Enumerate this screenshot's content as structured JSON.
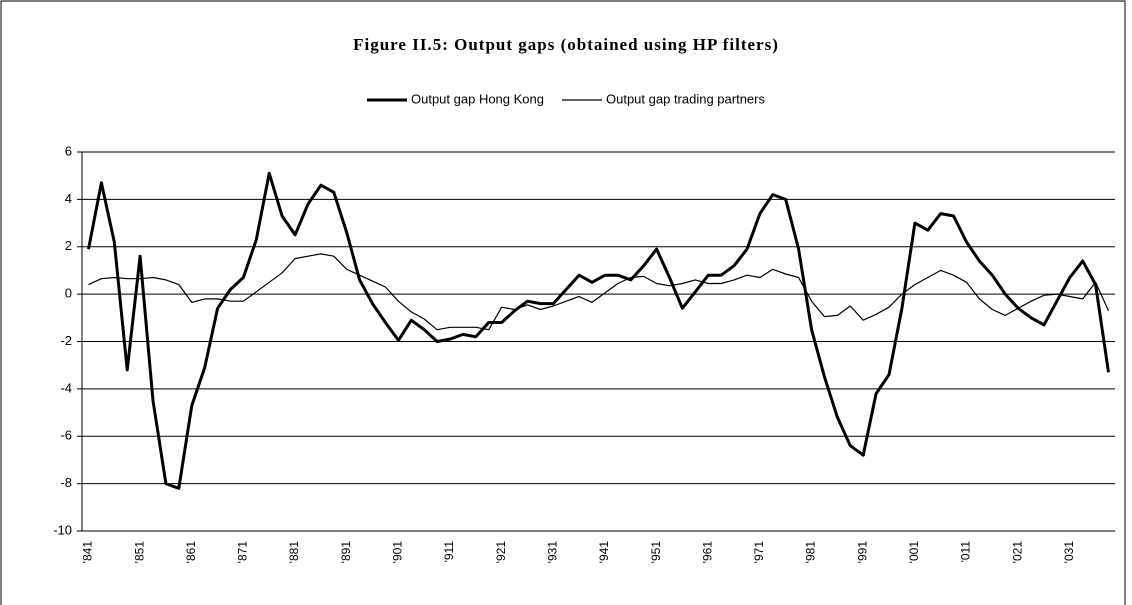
{
  "chart_data": {
    "type": "line",
    "title": "Figure II.5: Output gaps (obtained using HP filters)",
    "categories": [
      "'841",
      null,
      null,
      null,
      "'851",
      null,
      null,
      null,
      "'861",
      null,
      null,
      null,
      "'871",
      null,
      null,
      null,
      "'881",
      null,
      null,
      null,
      "'891",
      null,
      null,
      null,
      "'901",
      null,
      null,
      null,
      "'911",
      null,
      null,
      null,
      "'921",
      null,
      null,
      null,
      "'931",
      null,
      null,
      null,
      "'941",
      null,
      null,
      null,
      "'951",
      null,
      null,
      null,
      "'961",
      null,
      null,
      null,
      "'971",
      null,
      null,
      null,
      "'981",
      null,
      null,
      null,
      "'991",
      null,
      null,
      null,
      "'001",
      null,
      null,
      null,
      "'011",
      null,
      null,
      null,
      "'021",
      null,
      null,
      null,
      "'031",
      null,
      null,
      null
    ],
    "series": [
      {
        "name": "Output gap Hong Kong",
        "color": "#000000",
        "width": 3,
        "values": [
          1.9,
          4.7,
          2.2,
          -3.2,
          1.6,
          -4.5,
          -8.0,
          -8.2,
          -4.7,
          -3.1,
          -0.6,
          0.2,
          0.7,
          2.3,
          5.1,
          3.3,
          2.5,
          3.8,
          4.6,
          4.3,
          2.6,
          0.6,
          -0.4,
          -1.2,
          -1.95,
          -1.1,
          -1.5,
          -2.0,
          -1.9,
          -1.7,
          -1.8,
          -1.2,
          -1.2,
          -0.7,
          -0.3,
          -0.4,
          -0.4,
          0.2,
          0.8,
          0.5,
          0.8,
          0.8,
          0.6,
          1.2,
          1.9,
          0.7,
          -0.6,
          0.1,
          0.8,
          0.8,
          1.2,
          1.9,
          3.4,
          4.2,
          4.0,
          1.9,
          -1.5,
          -3.5,
          -5.2,
          -6.4,
          -6.8,
          -4.2,
          -3.4,
          -0.6,
          3.0,
          2.7,
          3.4,
          3.3,
          2.2,
          1.4,
          0.8,
          0.0,
          -0.6,
          -1.0,
          -1.3,
          -0.3,
          0.7,
          1.4,
          0.4,
          -3.3
        ]
      },
      {
        "name": "Output gap trading partners",
        "color": "#000000",
        "width": 1.2,
        "values": [
          0.4,
          0.65,
          0.7,
          0.65,
          0.65,
          0.7,
          0.6,
          0.4,
          -0.35,
          -0.2,
          -0.2,
          -0.3,
          -0.3,
          0.1,
          0.5,
          0.9,
          1.5,
          1.6,
          1.7,
          1.6,
          1.05,
          0.8,
          0.55,
          0.3,
          -0.3,
          -0.75,
          -1.05,
          -1.5,
          -1.4,
          -1.4,
          -1.4,
          -1.5,
          -0.55,
          -0.65,
          -0.45,
          -0.65,
          -0.5,
          -0.3,
          -0.1,
          -0.35,
          0.05,
          0.45,
          0.7,
          0.75,
          0.45,
          0.35,
          0.45,
          0.6,
          0.45,
          0.45,
          0.6,
          0.8,
          0.7,
          1.05,
          0.85,
          0.7,
          -0.3,
          -0.95,
          -0.9,
          -0.5,
          -1.1,
          -0.85,
          -0.55,
          0.0,
          0.4,
          0.7,
          1.0,
          0.8,
          0.5,
          -0.2,
          -0.65,
          -0.9,
          -0.6,
          -0.3,
          -0.05,
          0.0,
          -0.1,
          -0.2,
          0.5,
          -0.7
        ]
      }
    ],
    "ylim": [
      -10,
      6
    ],
    "yticks": [
      -10,
      -8,
      -6,
      -4,
      -2,
      0,
      2,
      4,
      6
    ],
    "grid": true,
    "legend": "top"
  }
}
